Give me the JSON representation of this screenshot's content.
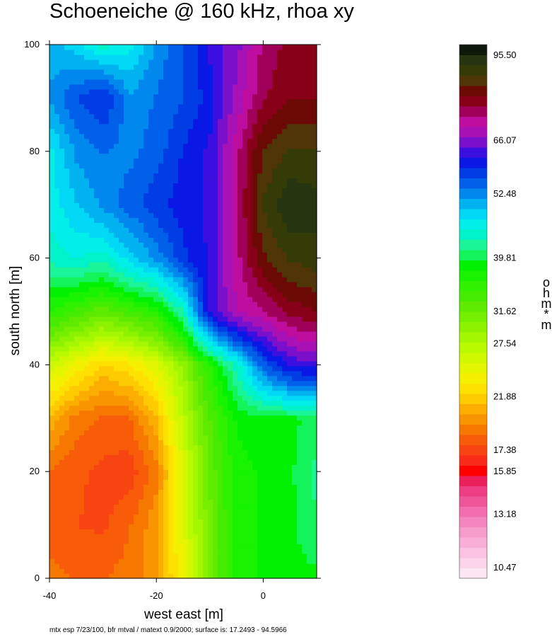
{
  "title": "Schoeneiche @ 160 kHz, rhoa xy",
  "footer": "mtx esp 7/23/100, bfr mtval / matext 0.9/2000; surface is: 17.2493 - 94.5966",
  "colorbar_unit": "ohm*m",
  "chart_data": {
    "type": "heatmap",
    "title": "Schoeneiche @ 160 kHz, rhoa xy",
    "xlabel": "west east [m]",
    "ylabel": "south north [m]",
    "xlim": [
      -40,
      10
    ],
    "ylim": [
      0,
      100
    ],
    "x_ticks": [
      -40,
      -20,
      0
    ],
    "y_ticks": [
      0,
      20,
      40,
      60,
      80,
      100
    ],
    "x_tick_labels": [
      "-40",
      "-20",
      "0"
    ],
    "y_tick_labels": [
      "0",
      "20",
      "40",
      "60",
      "80",
      "100"
    ],
    "surface_range": [
      17.2493,
      94.5966
    ],
    "x": [
      -40,
      -35,
      -30,
      -25,
      -20,
      -15,
      -10,
      -5,
      0,
      5,
      10
    ],
    "y": [
      0,
      10,
      20,
      30,
      40,
      50,
      60,
      70,
      80,
      90,
      100
    ],
    "z": [
      [
        19,
        18.5,
        18.5,
        19,
        20,
        24,
        31,
        37,
        38,
        39,
        39
      ],
      [
        18,
        17.8,
        17.6,
        18.5,
        20,
        25,
        31,
        37,
        38,
        39,
        41
      ],
      [
        18.5,
        18,
        17.5,
        17.3,
        19,
        25,
        32,
        37,
        38,
        39,
        42
      ],
      [
        21,
        19,
        18.5,
        18.5,
        21,
        27,
        33,
        38,
        39,
        39,
        40
      ],
      [
        26,
        24,
        22,
        23,
        25,
        29,
        36,
        44,
        55,
        62,
        63
      ],
      [
        36,
        34,
        32,
        34,
        36,
        43,
        62,
        70,
        73,
        78,
        80
      ],
      [
        44,
        45,
        44,
        48,
        52,
        58,
        62,
        72,
        83,
        88,
        90
      ],
      [
        46,
        49,
        52,
        55,
        58,
        60,
        62,
        72,
        88,
        95,
        93
      ],
      [
        46,
        52,
        54,
        53,
        55,
        59,
        62,
        72,
        84,
        88,
        88
      ],
      [
        52,
        56,
        59,
        52,
        54,
        56,
        60,
        68,
        76,
        80,
        80
      ],
      [
        50,
        48,
        44,
        46,
        52,
        56,
        62,
        66,
        74,
        78,
        79
      ]
    ],
    "colorbar": {
      "min": 10,
      "max": 100,
      "tick_values": [
        95.5,
        66.07,
        52.48,
        39.81,
        31.62,
        27.54,
        21.88,
        17.38,
        15.85,
        13.18,
        10.47
      ],
      "tick_labels": [
        "95.50",
        "66.07",
        "52.48",
        "39.81",
        "31.62",
        "27.54",
        "21.88",
        "17.38",
        "15.85",
        "13.18",
        "10.47"
      ],
      "colors_bottom_to_top": [
        "#fde6f3",
        "#fcd5ea",
        "#fbc2e1",
        "#f9aed6",
        "#f79bcb",
        "#f486bd",
        "#f26eae",
        "#ef5699",
        "#ee3e83",
        "#ea1f5b",
        "#ff0000",
        "#fa2a18",
        "#f84410",
        "#f85c08",
        "#f77800",
        "#f99500",
        "#fbad00",
        "#fdcb00",
        "#fee100",
        "#f4f000",
        "#e3f500",
        "#d0f800",
        "#b9fa00",
        "#a3f700",
        "#8cf200",
        "#74ef00",
        "#5eeb00",
        "#46ec00",
        "#2ff100",
        "#17f300",
        "#00f200",
        "#12f45a",
        "#1bf59a",
        "#00f2c8",
        "#00f0e9",
        "#00d8f5",
        "#00b3f0",
        "#0088ef",
        "#0060ea",
        "#003de5",
        "#0a18e6",
        "#3a0fe0",
        "#7a10cc",
        "#a811b6",
        "#bf0d9f",
        "#a0005a",
        "#880018",
        "#6b0a05",
        "#503507",
        "#353b07",
        "#263510",
        "#0c180a"
      ]
    }
  }
}
